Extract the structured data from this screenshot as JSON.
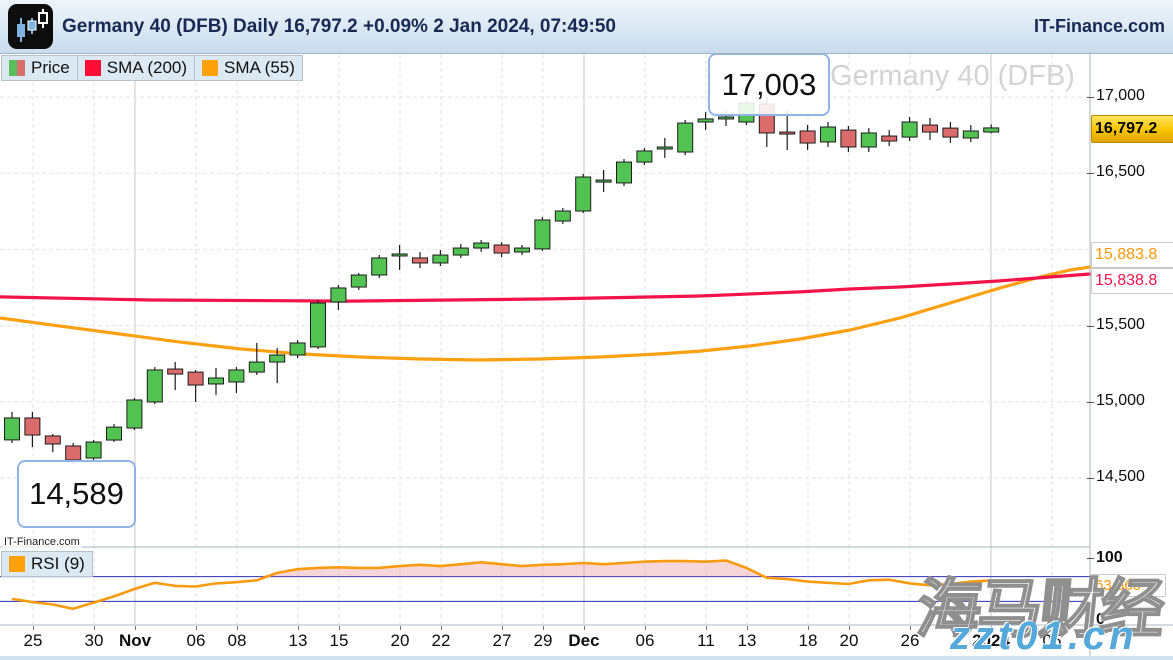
{
  "header": {
    "title": "Germany 40 (DFB) Daily 16,797.2 +0.09% 2 Jan 2024, 07:49:50",
    "brand": "IT-Finance.com",
    "logo": "candlestick-logo"
  },
  "legend": {
    "price": "Price",
    "sma200": "SMA (200)",
    "sma55": "SMA (55)"
  },
  "rsi_legend": {
    "label": "RSI (9)"
  },
  "footnote": "IT-Finance.com",
  "watermarks": {
    "chart": "Germany 40 (DFB)",
    "site_name": "海马财经",
    "site_url": "zzt01.cn"
  },
  "callouts": {
    "high": "17,003",
    "low": "14,589"
  },
  "tags": {
    "last_price": "16,797.2",
    "sma55": "15,883.8",
    "sma200": "15,838.8",
    "rsi": "63.566"
  },
  "colors": {
    "candle_up": "#52c352",
    "candle_down": "#dc6b6b",
    "candle_border": "#1c1c1c",
    "sma200": "#f2134a",
    "sma55": "#ffa011",
    "rsi_line": "#f99b0e",
    "rsi_level": "#2e2eb8",
    "rsi_fill": "rgba(228,120,130,0.30)",
    "grid": "#e2e2e2",
    "month_grid": "#c8c8c8",
    "tag_gold": "#f6c400",
    "header_text": "#182a54",
    "watermark_gray": "#d3d3d3",
    "watermark_blue": "#55a8da"
  },
  "chart_data": {
    "type": "candlestick",
    "instrument": "Germany 40 (DFB)",
    "timeframe": "Daily",
    "last": 16797.2,
    "change_pct": "+0.09%",
    "timestamp": "2 Jan 2024, 07:49:50",
    "high_label": 17003,
    "low_label": 14589,
    "y_axis": [
      [
        17000,
        "17,000"
      ],
      [
        16500,
        "16,500"
      ],
      [
        15500,
        "15,500"
      ],
      [
        15000,
        "15,000"
      ],
      [
        14500,
        "14,500"
      ]
    ],
    "grid_prices": [
      17000,
      16500,
      16000,
      15500,
      15000,
      14500
    ],
    "x_ticks": [
      [
        "25",
        33,
        0
      ],
      [
        "30",
        94,
        0
      ],
      [
        "Nov",
        135,
        1
      ],
      [
        "06",
        196,
        0
      ],
      [
        "08",
        237,
        0
      ],
      [
        "13",
        298,
        0
      ],
      [
        "15",
        339,
        0
      ],
      [
        "20",
        400,
        0
      ],
      [
        "22",
        441,
        0
      ],
      [
        "27",
        502,
        0
      ],
      [
        "29",
        543,
        0
      ],
      [
        "Dec",
        584,
        1
      ],
      [
        "06",
        645,
        0
      ],
      [
        "11",
        706,
        0
      ],
      [
        "13",
        747,
        0
      ],
      [
        "18",
        808,
        0
      ],
      [
        "20",
        849,
        0
      ],
      [
        "26",
        910,
        0
      ],
      [
        "2024",
        991,
        1
      ],
      [
        "05",
        1052,
        0
      ]
    ],
    "candles": [
      [
        14750,
        14933,
        14730,
        14894
      ],
      [
        14894,
        14933,
        14703,
        14782
      ],
      [
        14776,
        14789,
        14670,
        14723
      ],
      [
        14710,
        14730,
        14589,
        14618
      ],
      [
        14631,
        14749,
        14605,
        14736
      ],
      [
        14749,
        14854,
        14736,
        14834
      ],
      [
        14828,
        15025,
        14815,
        15012
      ],
      [
        14999,
        15228,
        14985,
        15209
      ],
      [
        15215,
        15261,
        15077,
        15182
      ],
      [
        15195,
        15208,
        14999,
        15110
      ],
      [
        15117,
        15222,
        15045,
        15156
      ],
      [
        15130,
        15228,
        15058,
        15209
      ],
      [
        15195,
        15386,
        15176,
        15261
      ],
      [
        15261,
        15353,
        15123,
        15307
      ],
      [
        15307,
        15405,
        15287,
        15386
      ],
      [
        15360,
        15668,
        15346,
        15648
      ],
      [
        15655,
        15766,
        15602,
        15747
      ],
      [
        15753,
        15845,
        15734,
        15832
      ],
      [
        15832,
        15963,
        15812,
        15944
      ],
      [
        15957,
        16029,
        15865,
        15970
      ],
      [
        15944,
        15983,
        15878,
        15911
      ],
      [
        15911,
        15996,
        15891,
        15963
      ],
      [
        15963,
        16035,
        15944,
        16009
      ],
      [
        16009,
        16062,
        15983,
        16042
      ],
      [
        16029,
        16048,
        15950,
        15976
      ],
      [
        15983,
        16029,
        15963,
        16009
      ],
      [
        16003,
        16213,
        15990,
        16193
      ],
      [
        16186,
        16272,
        16167,
        16252
      ],
      [
        16252,
        16495,
        16239,
        16475
      ],
      [
        16442,
        16521,
        16377,
        16455
      ],
      [
        16436,
        16593,
        16416,
        16573
      ],
      [
        16573,
        16665,
        16554,
        16646
      ],
      [
        16659,
        16731,
        16600,
        16672
      ],
      [
        16639,
        16849,
        16619,
        16829
      ],
      [
        16836,
        16901,
        16783,
        16856
      ],
      [
        16856,
        16914,
        16810,
        16869
      ],
      [
        16836,
        16980,
        16816,
        16960
      ],
      [
        16954,
        17003,
        16672,
        16764
      ],
      [
        16770,
        16914,
        16652,
        16757
      ],
      [
        16777,
        16816,
        16652,
        16698
      ],
      [
        16705,
        16836,
        16672,
        16803
      ],
      [
        16783,
        16810,
        16639,
        16672
      ],
      [
        16672,
        16796,
        16639,
        16764
      ],
      [
        16744,
        16783,
        16678,
        16711
      ],
      [
        16737,
        16869,
        16711,
        16836
      ],
      [
        16816,
        16862,
        16718,
        16770
      ],
      [
        16796,
        16836,
        16698,
        16737
      ],
      [
        16731,
        16816,
        16705,
        16777
      ],
      [
        16770,
        16820,
        16762,
        16797.2
      ]
    ],
    "sma200": [
      [
        0,
        15688
      ],
      [
        150,
        15668
      ],
      [
        350,
        15661
      ],
      [
        550,
        15675
      ],
      [
        700,
        15694
      ],
      [
        800,
        15721
      ],
      [
        850,
        15740
      ],
      [
        900,
        15753
      ],
      [
        950,
        15773
      ],
      [
        1000,
        15793
      ],
      [
        1050,
        15819
      ],
      [
        1090,
        15838.8
      ]
    ],
    "sma55": [
      [
        0,
        15550
      ],
      [
        60,
        15497
      ],
      [
        120,
        15445
      ],
      [
        180,
        15392
      ],
      [
        240,
        15347
      ],
      [
        300,
        15314
      ],
      [
        360,
        15294
      ],
      [
        420,
        15281
      ],
      [
        480,
        15274
      ],
      [
        540,
        15281
      ],
      [
        600,
        15294
      ],
      [
        660,
        15314
      ],
      [
        700,
        15333
      ],
      [
        750,
        15366
      ],
      [
        800,
        15412
      ],
      [
        850,
        15471
      ],
      [
        900,
        15550
      ],
      [
        950,
        15648
      ],
      [
        1000,
        15747
      ],
      [
        1040,
        15819
      ],
      [
        1070,
        15865
      ],
      [
        1090,
        15883.8
      ]
    ],
    "rsi": {
      "period": 9,
      "levels": [
        70,
        30
      ],
      "axis": [
        [
          100,
          "100"
        ],
        [
          0,
          "0"
        ]
      ],
      "last": 63.566,
      "values": [
        34,
        29,
        25,
        18,
        28,
        38,
        50,
        60,
        55,
        54,
        59,
        61,
        64,
        76,
        82,
        84,
        85,
        84,
        84,
        87,
        89,
        87,
        90,
        93,
        90,
        87,
        89,
        90,
        92,
        90,
        92,
        94,
        95,
        95,
        94,
        96,
        84,
        68,
        66,
        62,
        60,
        58,
        64,
        65,
        59,
        56,
        58,
        62,
        63.566
      ]
    }
  }
}
